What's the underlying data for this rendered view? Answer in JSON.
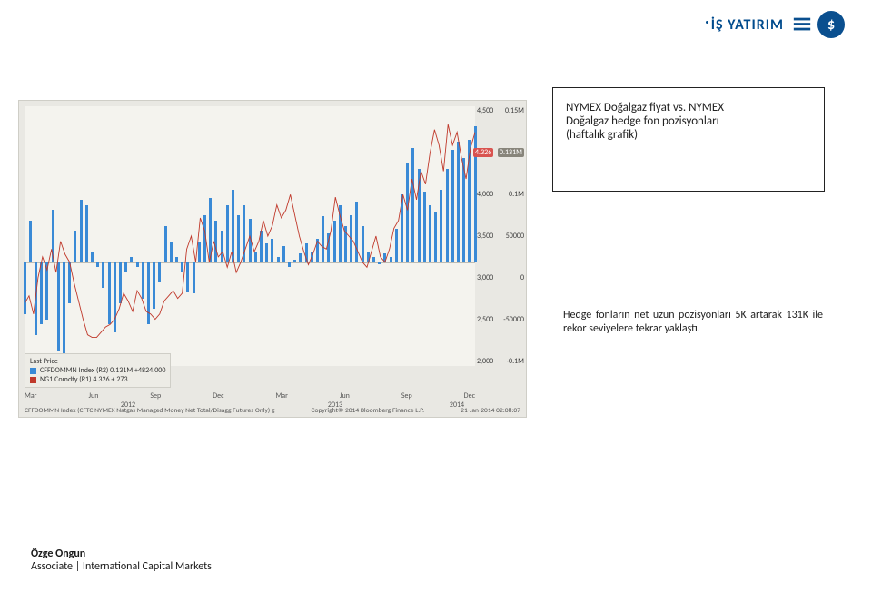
{
  "logo": {
    "brand_text": "İŞ YATIRIM",
    "badge_glyph": "$",
    "brand_color": "#004b8d",
    "badge_bg": "#0a4f8f",
    "badge_fg": "#ffffff"
  },
  "callout": {
    "line1": "NYMEX Doğalgaz fiyat vs. NYMEX",
    "line2": "Doğalgaz hedge fon pozisyonları",
    "line3": "(haftalık grafik)"
  },
  "body_text": "Hedge fonların net uzun pozisyonları 5K artarak 131K ile rekor seviyelere tekrar yaklaştı.",
  "credit": {
    "name": "Özge Ongun",
    "title": "Associate | International Capital Markets"
  },
  "chart": {
    "type": "combo-bar-line",
    "background_color": "#e9e8e3",
    "panel_color": "#f4f3ee",
    "grid_color": "#cfcec7",
    "bar_color": "#3a8ad6",
    "line_color": "#c0392b",
    "r1_axis": {
      "ticks": [
        "4,500",
        "4,000",
        "3,500",
        "3,000",
        "2,500",
        "2,000"
      ],
      "chip_value": "4.326",
      "chip_color": "#d9534f"
    },
    "r2_axis": {
      "ticks": [
        "0.15M",
        "0.1M",
        "50000",
        "0",
        "-50000",
        "-0.1M"
      ],
      "chip_value": "0.131M",
      "chip_color": "#88857b"
    },
    "x_year_groups": [
      "2012",
      "2013",
      "2014"
    ],
    "x_months": [
      "Mar",
      "Jun",
      "Sep",
      "Dec",
      "Mar",
      "Jun",
      "Sep",
      "Dec"
    ],
    "legend": {
      "title": "Last Price",
      "rows": [
        {
          "color": "#3a8ad6",
          "label": "CFFDOMMN Index (R2) 0.131M +4824.000"
        },
        {
          "color": "#c0392b",
          "label": "NG1 Comdty (R1)     4.326 +.273"
        }
      ]
    },
    "footer_left": "CFFDOMMN Index (CFTC NYMEX Natgas Managed Money Net Total/Disagg Futures Only) g",
    "footer_mid": "Copyright© 2014 Bloomberg Finance L.P.",
    "footer_right": "21-Jan-2014 02:08:07",
    "bars": [
      -50,
      40,
      -70,
      -60,
      -55,
      50,
      -85,
      -90,
      -40,
      30,
      60,
      55,
      10,
      -5,
      -25,
      -60,
      -68,
      -40,
      -10,
      5,
      -5,
      -35,
      -60,
      -45,
      -20,
      35,
      20,
      5,
      -10,
      -28,
      -30,
      20,
      45,
      62,
      40,
      30,
      55,
      70,
      45,
      55,
      42,
      10,
      30,
      18,
      22,
      5,
      15,
      -5,
      2,
      8,
      18,
      10,
      22,
      44,
      28,
      40,
      55,
      35,
      45,
      58,
      35,
      10,
      5,
      -2,
      8,
      5,
      32,
      65,
      95,
      110,
      90,
      68,
      55,
      48,
      70,
      90,
      108,
      116,
      100,
      118,
      131
    ],
    "bars_min": -100,
    "bars_max": 150,
    "line_points": [
      24,
      27,
      20,
      34,
      42,
      37,
      45,
      36,
      48,
      43,
      40,
      32,
      25,
      18,
      12,
      11,
      11,
      13,
      15,
      16,
      18,
      22,
      28,
      25,
      21,
      29,
      26,
      21,
      20,
      18,
      20,
      25,
      27,
      29,
      26,
      28,
      45,
      50,
      40,
      57,
      52,
      40,
      48,
      42,
      44,
      38,
      44,
      36,
      40,
      45,
      50,
      44,
      48,
      56,
      50,
      54,
      62,
      57,
      60,
      66,
      58,
      50,
      44,
      39,
      43,
      48,
      46,
      45,
      52,
      65,
      58,
      52,
      50,
      48,
      44,
      40,
      38,
      44,
      50,
      42,
      40,
      45,
      53,
      56,
      66,
      60,
      72,
      64,
      75,
      70,
      82,
      91,
      85,
      75,
      93,
      85,
      90,
      80,
      72,
      84,
      90
    ],
    "line_min": 0,
    "line_max": 100
  }
}
